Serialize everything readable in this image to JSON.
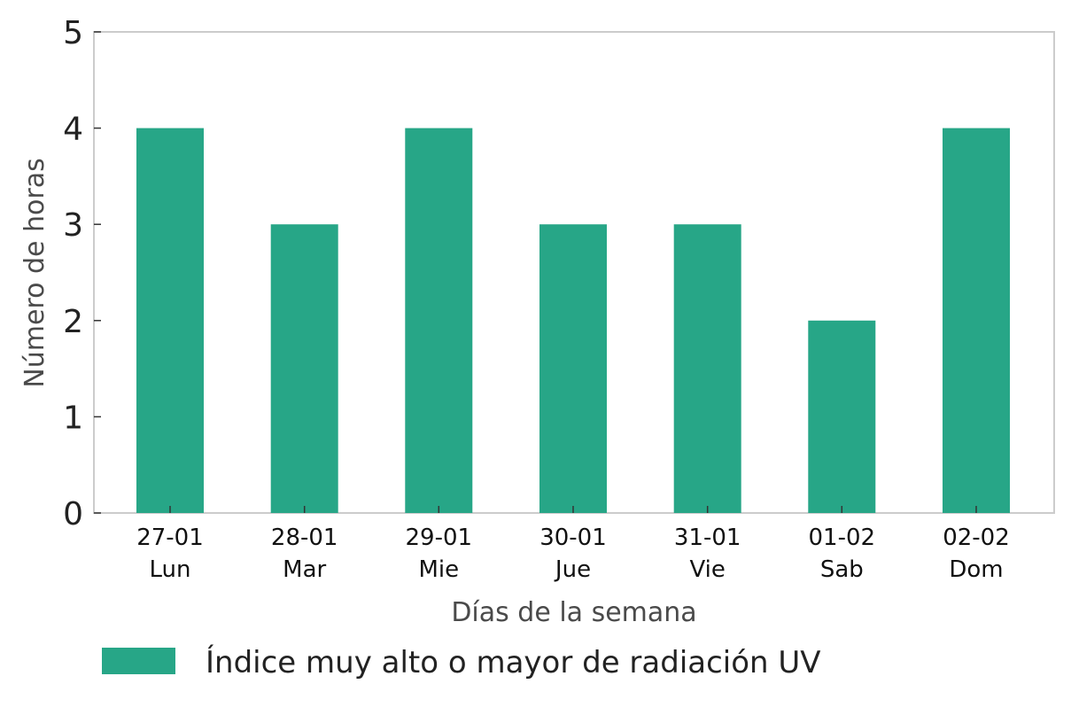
{
  "chart_data": {
    "type": "bar",
    "categories": [
      [
        "27-01",
        "Lun"
      ],
      [
        "28-01",
        "Mar"
      ],
      [
        "29-01",
        "Mie"
      ],
      [
        "30-01",
        "Jue"
      ],
      [
        "31-01",
        "Vie"
      ],
      [
        "01-02",
        "Sab"
      ],
      [
        "02-02",
        "Dom"
      ]
    ],
    "series": [
      {
        "name": "Índice muy alto o mayor de radiación UV",
        "values": [
          4,
          3,
          4,
          3,
          3,
          2,
          4
        ],
        "color": "#27a687"
      }
    ],
    "xlabel": "Días de la semana",
    "ylabel": "Número de horas",
    "ylim": [
      0,
      5
    ],
    "yticks": [
      0,
      1,
      2,
      3,
      4,
      5
    ],
    "grid": false,
    "legend_position": "bottom"
  }
}
